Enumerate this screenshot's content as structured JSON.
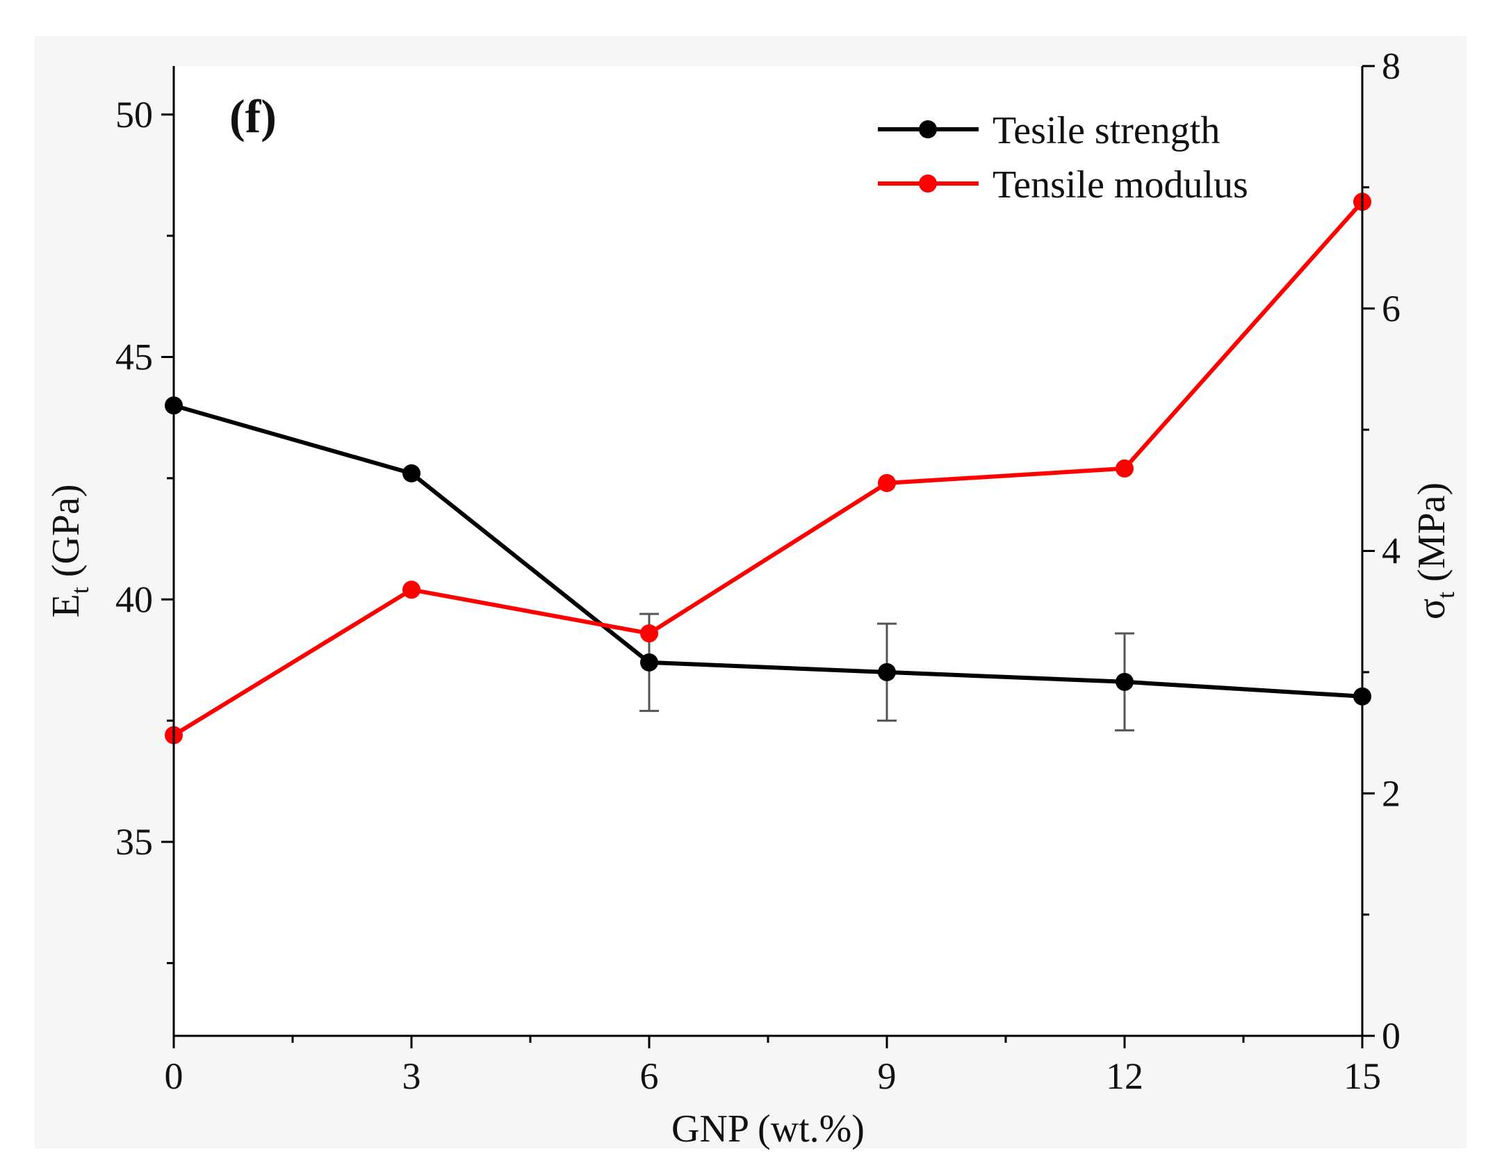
{
  "chart_data": {
    "type": "line",
    "panel_label": "(f)",
    "x": [
      0,
      3,
      6,
      9,
      12,
      15
    ],
    "xlim": [
      0,
      15
    ],
    "xticks": [
      "0",
      "3",
      "6",
      "9",
      "12",
      "15"
    ],
    "xlabel": "GNP (wt.%)",
    "ylabel_left": {
      "main": "E",
      "sub": "t",
      "unit": " (GPa)"
    },
    "ylabel_right": {
      "main": "σ",
      "sub": "t",
      "unit": " (MPa)"
    },
    "ylim_left": [
      31,
      51
    ],
    "yticks_left": [
      "35",
      "40",
      "45",
      "50"
    ],
    "ylim_right": [
      0,
      8
    ],
    "yticks_right": [
      "0",
      "2",
      "4",
      "6",
      "8"
    ],
    "legend_position": "top-right",
    "series": [
      {
        "name": "Tesile strength",
        "color": "#000000",
        "axis": "left",
        "values": [
          44.0,
          42.6,
          38.7,
          38.5,
          38.3,
          38.0
        ],
        "errors": [
          null,
          null,
          1.0,
          1.0,
          1.0,
          null
        ]
      },
      {
        "name": "Tensile modulus",
        "color": "#ff0000",
        "axis": "left",
        "values": [
          37.2,
          40.2,
          39.3,
          42.4,
          42.7,
          48.2
        ],
        "errors": [
          null,
          null,
          null,
          null,
          null,
          null
        ]
      }
    ]
  }
}
